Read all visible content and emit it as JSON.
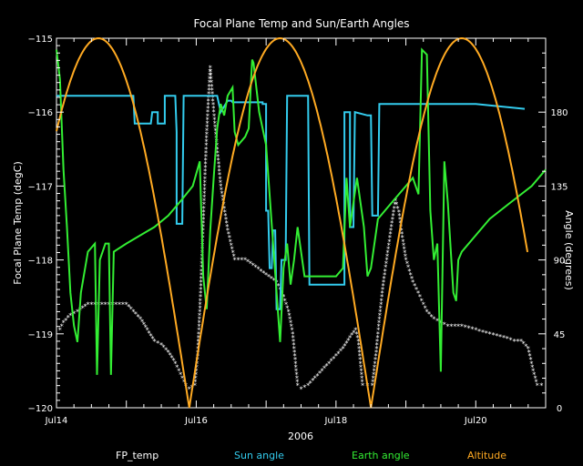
{
  "chart_data": {
    "type": "line",
    "title": "Focal Plane Temp and Sun/Earth Angles",
    "xlabel": "2006",
    "ylabel": "Focal Plane Temp (degC)",
    "y2label": "Angle (degrees)",
    "x_range": [
      14.0,
      21.0
    ],
    "x_ticks": [
      {
        "v": 14,
        "label": "Jul14"
      },
      {
        "v": 16,
        "label": "Jul16"
      },
      {
        "v": 18,
        "label": "Jul18"
      },
      {
        "v": 20,
        "label": "Jul20"
      }
    ],
    "ylim": [
      -120,
      -115
    ],
    "y_ticks": [
      "-115",
      "-116",
      "-117",
      "-118",
      "-119",
      "-120"
    ],
    "y2lim": [
      0,
      225
    ],
    "y2_ticks": [
      "0",
      "45",
      "90",
      "135",
      "180"
    ],
    "grid": false,
    "legend_position": "bottom",
    "series": [
      {
        "name": "FP_temp",
        "axis": "left",
        "color": "#ffffff",
        "marker": "asterisk",
        "points": [
          [
            14.05,
            -118.95
          ],
          [
            14.1,
            -118.85
          ],
          [
            14.2,
            -118.75
          ],
          [
            14.3,
            -118.7
          ],
          [
            14.45,
            -118.6
          ],
          [
            14.6,
            -118.6
          ],
          [
            14.8,
            -118.6
          ],
          [
            15.0,
            -118.6
          ],
          [
            15.1,
            -118.7
          ],
          [
            15.2,
            -118.8
          ],
          [
            15.3,
            -118.95
          ],
          [
            15.4,
            -119.1
          ],
          [
            15.5,
            -119.15
          ],
          [
            15.6,
            -119.25
          ],
          [
            15.7,
            -119.4
          ],
          [
            15.8,
            -119.6
          ],
          [
            15.85,
            -119.7
          ],
          [
            15.9,
            -119.75
          ],
          [
            15.98,
            -119.7
          ],
          [
            16.02,
            -119.3
          ],
          [
            16.06,
            -118.5
          ],
          [
            16.1,
            -117.5
          ],
          [
            16.14,
            -116.5
          ],
          [
            16.17,
            -115.9
          ],
          [
            16.2,
            -115.4
          ],
          [
            16.25,
            -116.0
          ],
          [
            16.35,
            -117.0
          ],
          [
            16.45,
            -117.6
          ],
          [
            16.55,
            -118.0
          ],
          [
            16.7,
            -118.0
          ],
          [
            16.85,
            -118.1
          ],
          [
            17.0,
            -118.2
          ],
          [
            17.15,
            -118.3
          ],
          [
            17.25,
            -118.5
          ],
          [
            17.32,
            -118.7
          ],
          [
            17.38,
            -119.0
          ],
          [
            17.42,
            -119.4
          ],
          [
            17.45,
            -119.7
          ],
          [
            17.5,
            -119.75
          ],
          [
            17.6,
            -119.7
          ],
          [
            17.7,
            -119.6
          ],
          [
            17.8,
            -119.5
          ],
          [
            17.9,
            -119.4
          ],
          [
            18.0,
            -119.3
          ],
          [
            18.1,
            -119.2
          ],
          [
            18.2,
            -119.05
          ],
          [
            18.28,
            -118.95
          ],
          [
            18.32,
            -119.1
          ],
          [
            18.35,
            -119.4
          ],
          [
            18.38,
            -119.7
          ],
          [
            18.45,
            -119.7
          ],
          [
            18.52,
            -119.7
          ],
          [
            18.57,
            -119.3
          ],
          [
            18.62,
            -118.8
          ],
          [
            18.68,
            -118.3
          ],
          [
            18.74,
            -117.9
          ],
          [
            18.8,
            -117.5
          ],
          [
            18.85,
            -117.2
          ],
          [
            18.9,
            -117.35
          ],
          [
            18.95,
            -117.7
          ],
          [
            19.0,
            -118.0
          ],
          [
            19.1,
            -118.3
          ],
          [
            19.2,
            -118.5
          ],
          [
            19.3,
            -118.7
          ],
          [
            19.4,
            -118.8
          ],
          [
            19.5,
            -118.85
          ],
          [
            19.6,
            -118.9
          ],
          [
            19.8,
            -118.9
          ],
          [
            20.0,
            -118.95
          ],
          [
            20.2,
            -119.0
          ],
          [
            20.4,
            -119.05
          ],
          [
            20.55,
            -119.1
          ],
          [
            20.65,
            -119.1
          ],
          [
            20.75,
            -119.2
          ],
          [
            20.82,
            -119.5
          ],
          [
            20.88,
            -119.7
          ],
          [
            21.0,
            -119.7
          ]
        ]
      },
      {
        "name": "Sun angle",
        "axis": "right",
        "color": "#33ccee",
        "points": [
          [
            14.0,
            190
          ],
          [
            15.1,
            190
          ],
          [
            15.12,
            173
          ],
          [
            15.35,
            173
          ],
          [
            15.37,
            180
          ],
          [
            15.45,
            180
          ],
          [
            15.45,
            173
          ],
          [
            15.55,
            173
          ],
          [
            15.55,
            190
          ],
          [
            15.7,
            190
          ],
          [
            15.72,
            168
          ],
          [
            15.72,
            112
          ],
          [
            15.8,
            112
          ],
          [
            15.82,
            190
          ],
          [
            16.3,
            190
          ],
          [
            16.35,
            180
          ],
          [
            16.45,
            187
          ],
          [
            16.5,
            187
          ],
          [
            16.52,
            186
          ],
          [
            16.95,
            186
          ],
          [
            16.95,
            185
          ],
          [
            17.0,
            185
          ],
          [
            17.0,
            120
          ],
          [
            17.03,
            120
          ],
          [
            17.05,
            85
          ],
          [
            17.08,
            85
          ],
          [
            17.1,
            108
          ],
          [
            17.13,
            108
          ],
          [
            17.15,
            60
          ],
          [
            17.2,
            60
          ],
          [
            17.22,
            90
          ],
          [
            17.28,
            90
          ],
          [
            17.3,
            190
          ],
          [
            17.6,
            190
          ],
          [
            17.62,
            75
          ],
          [
            18.12,
            75
          ],
          [
            18.12,
            180
          ],
          [
            18.2,
            180
          ],
          [
            18.2,
            110
          ],
          [
            18.25,
            110
          ],
          [
            18.27,
            180
          ],
          [
            18.45,
            178
          ],
          [
            18.5,
            178
          ],
          [
            18.52,
            117
          ],
          [
            18.6,
            117
          ],
          [
            18.62,
            185
          ],
          [
            20.0,
            185
          ],
          [
            20.7,
            182
          ]
        ]
      },
      {
        "name": "Earth angle",
        "axis": "right",
        "color": "#33ee33",
        "points": [
          [
            14.0,
            218
          ],
          [
            14.05,
            200
          ],
          [
            14.1,
            145
          ],
          [
            14.15,
            110
          ],
          [
            14.2,
            70
          ],
          [
            14.25,
            50
          ],
          [
            14.3,
            40
          ],
          [
            14.35,
            70
          ],
          [
            14.45,
            95
          ],
          [
            14.55,
            100
          ],
          [
            14.58,
            20
          ],
          [
            14.62,
            90
          ],
          [
            14.7,
            100
          ],
          [
            14.75,
            100
          ],
          [
            14.78,
            20
          ],
          [
            14.82,
            95
          ],
          [
            15.0,
            100
          ],
          [
            15.2,
            105
          ],
          [
            15.4,
            110
          ],
          [
            15.6,
            117
          ],
          [
            15.8,
            127
          ],
          [
            15.95,
            135
          ],
          [
            16.05,
            150
          ],
          [
            16.1,
            80
          ],
          [
            16.15,
            60
          ],
          [
            16.2,
            108
          ],
          [
            16.25,
            140
          ],
          [
            16.3,
            170
          ],
          [
            16.35,
            185
          ],
          [
            16.4,
            178
          ],
          [
            16.45,
            190
          ],
          [
            16.52,
            195
          ],
          [
            16.55,
            168
          ],
          [
            16.6,
            160
          ],
          [
            16.7,
            165
          ],
          [
            16.75,
            170
          ],
          [
            16.8,
            212
          ],
          [
            16.82,
            210
          ],
          [
            16.9,
            180
          ],
          [
            17.0,
            160
          ],
          [
            17.1,
            100
          ],
          [
            17.2,
            40
          ],
          [
            17.25,
            85
          ],
          [
            17.3,
            100
          ],
          [
            17.35,
            75
          ],
          [
            17.4,
            90
          ],
          [
            17.45,
            110
          ],
          [
            17.55,
            80
          ],
          [
            17.7,
            80
          ],
          [
            17.8,
            80
          ],
          [
            18.0,
            80
          ],
          [
            18.1,
            85
          ],
          [
            18.12,
            108
          ],
          [
            18.15,
            140
          ],
          [
            18.2,
            110
          ],
          [
            18.3,
            140
          ],
          [
            18.4,
            110
          ],
          [
            18.45,
            80
          ],
          [
            18.5,
            85
          ],
          [
            18.6,
            115
          ],
          [
            18.8,
            125
          ],
          [
            19.0,
            135
          ],
          [
            19.1,
            140
          ],
          [
            19.18,
            130
          ],
          [
            19.23,
            218
          ],
          [
            19.3,
            215
          ],
          [
            19.35,
            120
          ],
          [
            19.4,
            90
          ],
          [
            19.45,
            100
          ],
          [
            19.5,
            22
          ],
          [
            19.55,
            150
          ],
          [
            19.6,
            125
          ],
          [
            19.68,
            70
          ],
          [
            19.72,
            65
          ],
          [
            19.75,
            90
          ],
          [
            19.8,
            95
          ],
          [
            20.0,
            105
          ],
          [
            20.2,
            115
          ],
          [
            20.5,
            125
          ],
          [
            20.8,
            135
          ],
          [
            21.0,
            145
          ]
        ]
      },
      {
        "name": "Altitude",
        "axis": "right",
        "color": "#ffaa22",
        "shape": "abs-sine",
        "amplitude": 225,
        "phase_start": 15.9,
        "half_period": 2.6,
        "x_start": 14.0,
        "x_end": 20.75
      }
    ]
  },
  "legend": [
    {
      "label": "FP_temp",
      "color": "#ffffff"
    },
    {
      "label": "Sun angle",
      "color": "#33ccee"
    },
    {
      "label": "Earth angle",
      "color": "#33ee33"
    },
    {
      "label": "Altitude",
      "color": "#ffaa22"
    }
  ]
}
